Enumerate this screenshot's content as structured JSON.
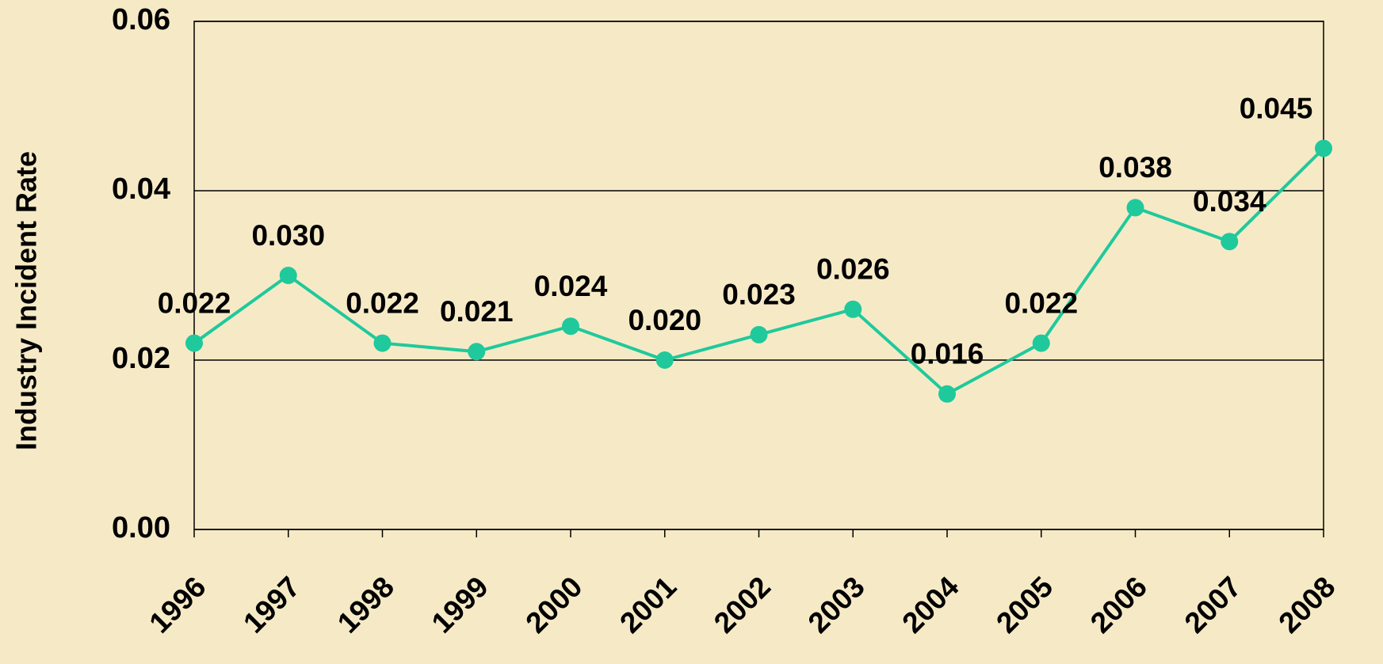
{
  "chart_data": {
    "type": "line",
    "y_label": "Industry Incident Rate",
    "categories": [
      "1996",
      "1997",
      "1998",
      "1999",
      "2000",
      "2001",
      "2002",
      "2003",
      "2004",
      "2005",
      "2006",
      "2007",
      "2008"
    ],
    "series": [
      {
        "name": "Industry Incident Rate",
        "color": "#1fc99c",
        "values": [
          0.022,
          0.03,
          0.022,
          0.021,
          0.024,
          0.02,
          0.023,
          0.026,
          0.016,
          0.022,
          0.038,
          0.034,
          0.045
        ],
        "value_labels": [
          "0.022",
          "0.030",
          "0.022",
          "0.021",
          "0.024",
          "0.020",
          "0.023",
          "0.026",
          "0.016",
          "0.022",
          "0.038",
          "0.034",
          "0.045"
        ]
      }
    ],
    "ylim": [
      0,
      0.06
    ],
    "yticks": [
      {
        "value": 0,
        "label": "0.00"
      },
      0.02,
      0.04,
      0.06
    ],
    "grid": true
  }
}
